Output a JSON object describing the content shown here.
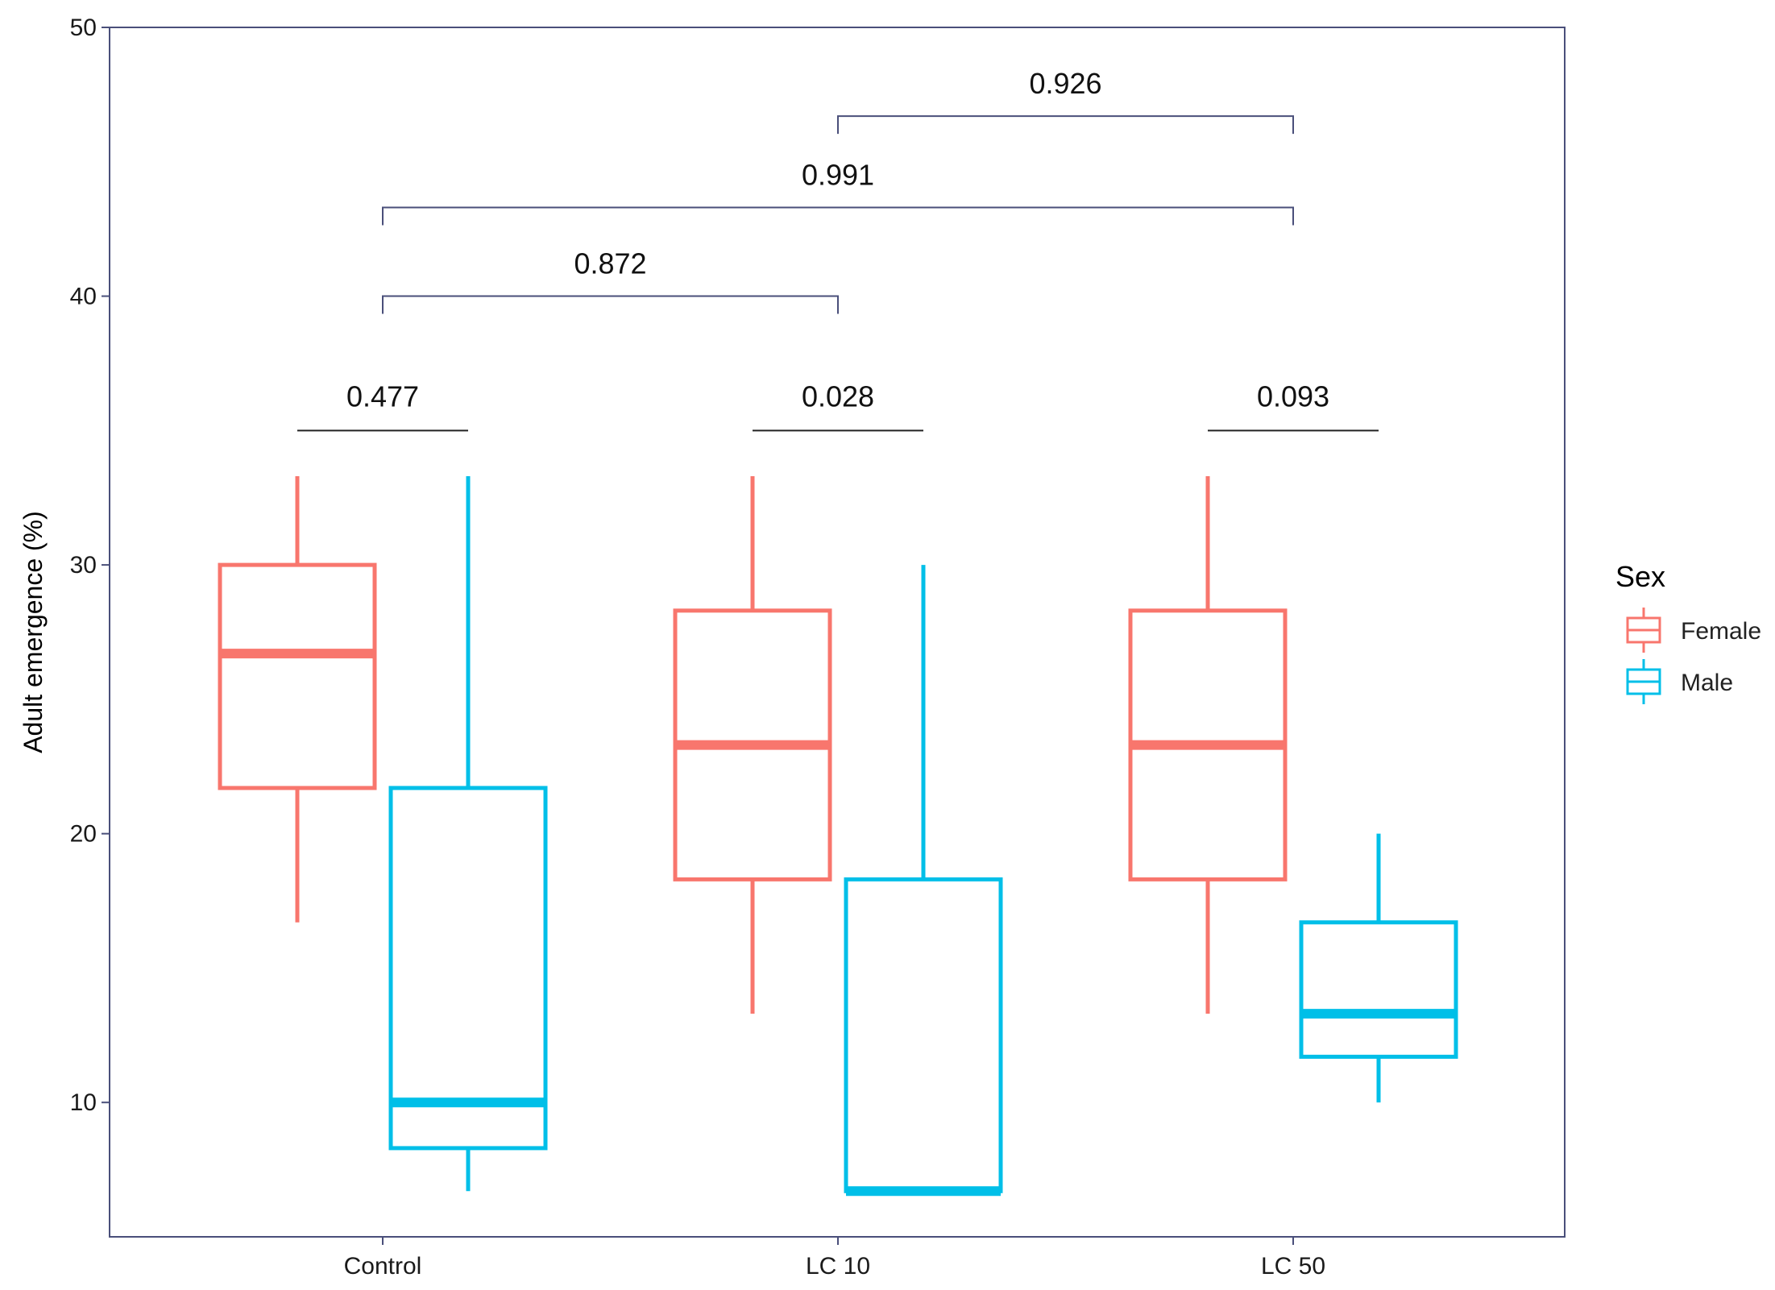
{
  "chart_data": {
    "type": "boxplot",
    "ylabel": "Adult emergence (%)",
    "xlabel": "",
    "ylim": [
      5,
      50
    ],
    "yticks": [
      10,
      20,
      30,
      40,
      50
    ],
    "categories": [
      "Control",
      "LC 10",
      "LC 50"
    ],
    "legend": {
      "title": "Sex",
      "position": "right"
    },
    "grid": false,
    "series": [
      {
        "name": "Female",
        "color": "#F8766D",
        "boxes": [
          {
            "min": 16.7,
            "q1": 21.7,
            "median": 26.7,
            "q3": 30.0,
            "max": 33.3
          },
          {
            "min": 13.3,
            "q1": 18.3,
            "median": 23.3,
            "q3": 28.3,
            "max": 33.3
          },
          {
            "min": 13.3,
            "q1": 18.3,
            "median": 23.3,
            "q3": 28.3,
            "max": 33.3
          }
        ]
      },
      {
        "name": "Male",
        "color": "#00BFE8",
        "boxes": [
          {
            "min": 6.7,
            "q1": 8.3,
            "median": 10.0,
            "q3": 21.7,
            "max": 33.3
          },
          {
            "min": 6.7,
            "q1": 6.7,
            "median": 6.7,
            "q3": 18.3,
            "max": 30.0
          },
          {
            "min": 10.0,
            "q1": 11.7,
            "median": 13.3,
            "q3": 16.7,
            "max": 20.0
          }
        ]
      }
    ],
    "sex_comparisons": [
      {
        "category": "Control",
        "y": 35,
        "label": "0.477"
      },
      {
        "category": "LC 10",
        "y": 35,
        "label": "0.028"
      },
      {
        "category": "LC 50",
        "y": 35,
        "label": "0.093"
      }
    ],
    "group_comparisons": [
      {
        "from": "Control",
        "to": "LC 10",
        "y": 40,
        "label": "0.872"
      },
      {
        "from": "Control",
        "to": "LC 50",
        "y": 43.3,
        "label": "0.991"
      },
      {
        "from": "LC 10",
        "to": "LC 50",
        "y": 46.7,
        "label": "0.926"
      }
    ]
  }
}
